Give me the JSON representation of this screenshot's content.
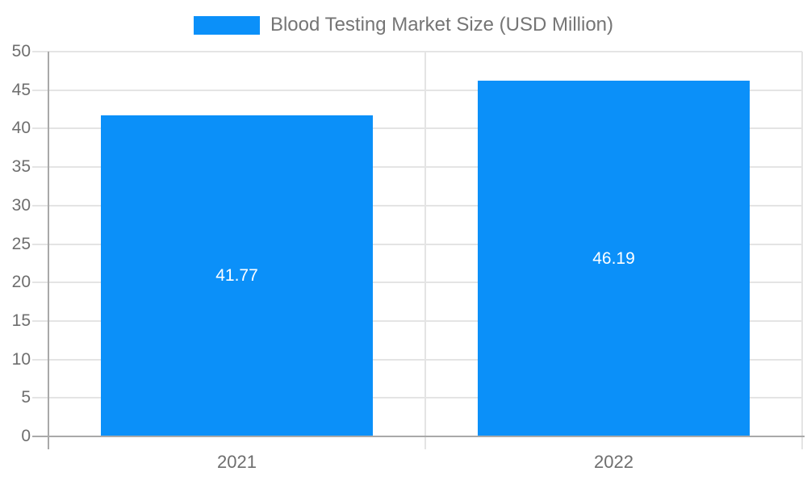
{
  "chart_data": {
    "type": "bar",
    "title": "Blood Testing Market Size (USD Million)",
    "categories": [
      "2021",
      "2022"
    ],
    "values": [
      41.77,
      46.19
    ],
    "value_labels": [
      "41.77",
      "46.19"
    ],
    "xlabel": "",
    "ylabel": "",
    "ylim": [
      0,
      50
    ],
    "yticks": [
      0,
      5,
      10,
      15,
      20,
      25,
      30,
      35,
      40,
      45,
      50
    ],
    "grid": true,
    "legend": {
      "position": "top",
      "label": "Blood Testing Market Size (USD Million)"
    },
    "colors": {
      "bar": "#0b90f9",
      "value_label": "#ffffff",
      "axis_line": "#a9a9a9",
      "gridline": "#e4e4e4",
      "tick_label": "#6e6e6e",
      "legend_text": "#757575"
    }
  }
}
